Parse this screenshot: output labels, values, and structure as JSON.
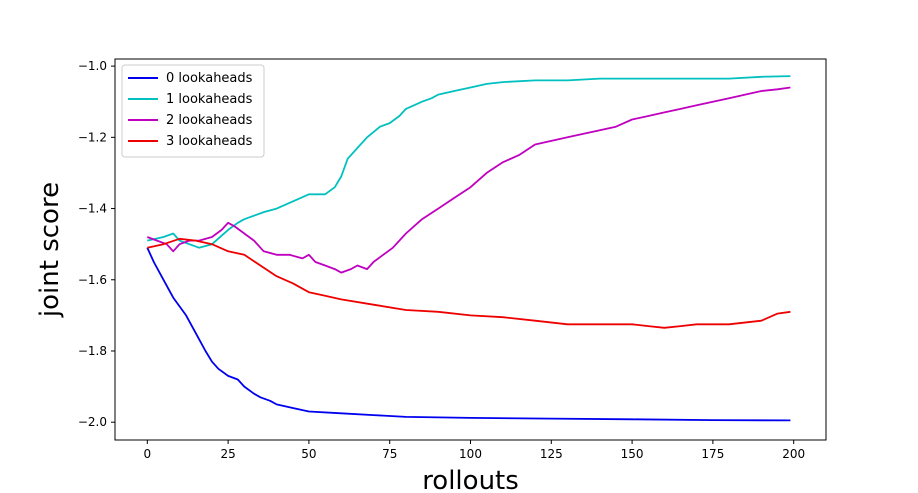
{
  "chart_data": {
    "type": "line",
    "title": "",
    "xlabel": "rollouts",
    "ylabel": "joint score",
    "xlim": [
      -10,
      210
    ],
    "ylim": [
      -2.05,
      -0.98
    ],
    "x_ticks": [
      0,
      25,
      50,
      75,
      100,
      125,
      150,
      175,
      200
    ],
    "x_tick_labels": [
      "0",
      "25",
      "50",
      "75",
      "100",
      "125",
      "150",
      "175",
      "200"
    ],
    "y_ticks": [
      -2.0,
      -1.8,
      -1.6,
      -1.4,
      -1.2,
      -1.0
    ],
    "y_tick_labels": [
      "−2.0",
      "−1.8",
      "−1.6",
      "−1.4",
      "−1.2",
      "−1.0"
    ],
    "grid": false,
    "legend_position": "upper-left",
    "series": [
      {
        "name": "0 lookaheads",
        "color": "#0000ee",
        "points": [
          [
            0,
            -1.51
          ],
          [
            2,
            -1.55
          ],
          [
            5,
            -1.6
          ],
          [
            8,
            -1.65
          ],
          [
            12,
            -1.7
          ],
          [
            15,
            -1.75
          ],
          [
            18,
            -1.8
          ],
          [
            20,
            -1.83
          ],
          [
            22,
            -1.85
          ],
          [
            25,
            -1.87
          ],
          [
            28,
            -1.88
          ],
          [
            30,
            -1.9
          ],
          [
            33,
            -1.92
          ],
          [
            35,
            -1.93
          ],
          [
            38,
            -1.94
          ],
          [
            40,
            -1.95
          ],
          [
            45,
            -1.96
          ],
          [
            50,
            -1.97
          ],
          [
            60,
            -1.975
          ],
          [
            70,
            -1.98
          ],
          [
            80,
            -1.985
          ],
          [
            100,
            -1.988
          ],
          [
            125,
            -1.99
          ],
          [
            150,
            -1.992
          ],
          [
            175,
            -1.994
          ],
          [
            199,
            -1.995
          ]
        ]
      },
      {
        "name": "1 lookaheads",
        "color": "#00c0c0",
        "points": [
          [
            0,
            -1.49
          ],
          [
            5,
            -1.48
          ],
          [
            8,
            -1.47
          ],
          [
            10,
            -1.49
          ],
          [
            13,
            -1.5
          ],
          [
            16,
            -1.51
          ],
          [
            20,
            -1.5
          ],
          [
            25,
            -1.46
          ],
          [
            28,
            -1.44
          ],
          [
            30,
            -1.43
          ],
          [
            33,
            -1.42
          ],
          [
            36,
            -1.41
          ],
          [
            40,
            -1.4
          ],
          [
            45,
            -1.38
          ],
          [
            50,
            -1.36
          ],
          [
            55,
            -1.36
          ],
          [
            58,
            -1.34
          ],
          [
            60,
            -1.31
          ],
          [
            62,
            -1.26
          ],
          [
            65,
            -1.23
          ],
          [
            68,
            -1.2
          ],
          [
            72,
            -1.17
          ],
          [
            75,
            -1.16
          ],
          [
            78,
            -1.14
          ],
          [
            80,
            -1.12
          ],
          [
            85,
            -1.1
          ],
          [
            88,
            -1.09
          ],
          [
            90,
            -1.08
          ],
          [
            95,
            -1.07
          ],
          [
            100,
            -1.06
          ],
          [
            105,
            -1.05
          ],
          [
            110,
            -1.045
          ],
          [
            120,
            -1.04
          ],
          [
            130,
            -1.04
          ],
          [
            140,
            -1.035
          ],
          [
            150,
            -1.035
          ],
          [
            160,
            -1.035
          ],
          [
            170,
            -1.035
          ],
          [
            180,
            -1.035
          ],
          [
            190,
            -1.03
          ],
          [
            199,
            -1.028
          ]
        ]
      },
      {
        "name": "2 lookaheads",
        "color": "#c000c0",
        "points": [
          [
            0,
            -1.48
          ],
          [
            3,
            -1.49
          ],
          [
            6,
            -1.5
          ],
          [
            8,
            -1.52
          ],
          [
            10,
            -1.5
          ],
          [
            13,
            -1.49
          ],
          [
            16,
            -1.49
          ],
          [
            20,
            -1.48
          ],
          [
            23,
            -1.46
          ],
          [
            25,
            -1.44
          ],
          [
            27,
            -1.45
          ],
          [
            30,
            -1.47
          ],
          [
            33,
            -1.49
          ],
          [
            36,
            -1.52
          ],
          [
            40,
            -1.53
          ],
          [
            44,
            -1.53
          ],
          [
            48,
            -1.54
          ],
          [
            50,
            -1.53
          ],
          [
            52,
            -1.55
          ],
          [
            55,
            -1.56
          ],
          [
            58,
            -1.57
          ],
          [
            60,
            -1.58
          ],
          [
            63,
            -1.57
          ],
          [
            65,
            -1.56
          ],
          [
            68,
            -1.57
          ],
          [
            70,
            -1.55
          ],
          [
            73,
            -1.53
          ],
          [
            76,
            -1.51
          ],
          [
            80,
            -1.47
          ],
          [
            85,
            -1.43
          ],
          [
            90,
            -1.4
          ],
          [
            95,
            -1.37
          ],
          [
            100,
            -1.34
          ],
          [
            105,
            -1.3
          ],
          [
            110,
            -1.27
          ],
          [
            115,
            -1.25
          ],
          [
            120,
            -1.22
          ],
          [
            125,
            -1.21
          ],
          [
            130,
            -1.2
          ],
          [
            135,
            -1.19
          ],
          [
            140,
            -1.18
          ],
          [
            145,
            -1.17
          ],
          [
            150,
            -1.15
          ],
          [
            155,
            -1.14
          ],
          [
            160,
            -1.13
          ],
          [
            165,
            -1.12
          ],
          [
            170,
            -1.11
          ],
          [
            175,
            -1.1
          ],
          [
            180,
            -1.09
          ],
          [
            185,
            -1.08
          ],
          [
            190,
            -1.07
          ],
          [
            195,
            -1.065
          ],
          [
            199,
            -1.06
          ]
        ]
      },
      {
        "name": "3 lookaheads",
        "color": "#ee0000",
        "points": [
          [
            0,
            -1.51
          ],
          [
            5,
            -1.5
          ],
          [
            10,
            -1.485
          ],
          [
            15,
            -1.49
          ],
          [
            20,
            -1.5
          ],
          [
            25,
            -1.52
          ],
          [
            30,
            -1.53
          ],
          [
            35,
            -1.56
          ],
          [
            40,
            -1.59
          ],
          [
            45,
            -1.61
          ],
          [
            50,
            -1.635
          ],
          [
            55,
            -1.645
          ],
          [
            60,
            -1.655
          ],
          [
            70,
            -1.67
          ],
          [
            80,
            -1.685
          ],
          [
            90,
            -1.69
          ],
          [
            100,
            -1.7
          ],
          [
            110,
            -1.705
          ],
          [
            120,
            -1.715
          ],
          [
            130,
            -1.725
          ],
          [
            140,
            -1.725
          ],
          [
            150,
            -1.725
          ],
          [
            155,
            -1.73
          ],
          [
            160,
            -1.735
          ],
          [
            165,
            -1.73
          ],
          [
            170,
            -1.725
          ],
          [
            180,
            -1.725
          ],
          [
            190,
            -1.715
          ],
          [
            195,
            -1.695
          ],
          [
            199,
            -1.69
          ]
        ]
      }
    ]
  }
}
